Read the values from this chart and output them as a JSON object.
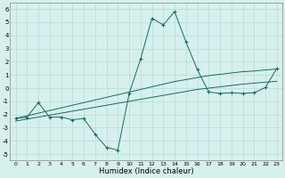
{
  "x": [
    0,
    1,
    2,
    3,
    4,
    5,
    6,
    7,
    8,
    9,
    10,
    11,
    12,
    13,
    14,
    15,
    16,
    17,
    18,
    19,
    20,
    21,
    22,
    23
  ],
  "y_main": [
    -2.3,
    -2.2,
    -1.1,
    -2.2,
    -2.2,
    -2.4,
    -2.3,
    -3.5,
    -4.5,
    -4.7,
    -0.4,
    2.2,
    5.3,
    4.8,
    5.8,
    3.5,
    1.4,
    -0.3,
    -0.4,
    -0.35,
    -0.4,
    -0.35,
    0.05,
    1.5
  ],
  "y_line1": [
    -2.5,
    -2.35,
    -2.2,
    -2.05,
    -1.9,
    -1.75,
    -1.6,
    -1.45,
    -1.3,
    -1.15,
    -1.0,
    -0.85,
    -0.7,
    -0.55,
    -0.4,
    -0.25,
    -0.1,
    0.0,
    0.1,
    0.2,
    0.3,
    0.38,
    0.45,
    0.52
  ],
  "y_line2": [
    -2.3,
    -2.1,
    -1.9,
    -1.7,
    -1.5,
    -1.3,
    -1.1,
    -0.9,
    -0.7,
    -0.5,
    -0.3,
    -0.1,
    0.1,
    0.3,
    0.5,
    0.65,
    0.8,
    0.95,
    1.05,
    1.15,
    1.25,
    1.3,
    1.38,
    1.45
  ],
  "line_color": "#1a6b5a",
  "bg_color": "#d6f0ee",
  "grid_color": "#b8dbd8",
  "xlabel": "Humidex (Indice chaleur)",
  "ylim": [
    -5.5,
    6.5
  ],
  "xlim": [
    -0.5,
    23.5
  ],
  "yticks": [
    -5,
    -4,
    -3,
    -2,
    -1,
    0,
    1,
    2,
    3,
    4,
    5,
    6
  ],
  "xticks": [
    0,
    1,
    2,
    3,
    4,
    5,
    6,
    7,
    8,
    9,
    10,
    11,
    12,
    13,
    14,
    15,
    16,
    17,
    18,
    19,
    20,
    21,
    22,
    23
  ]
}
